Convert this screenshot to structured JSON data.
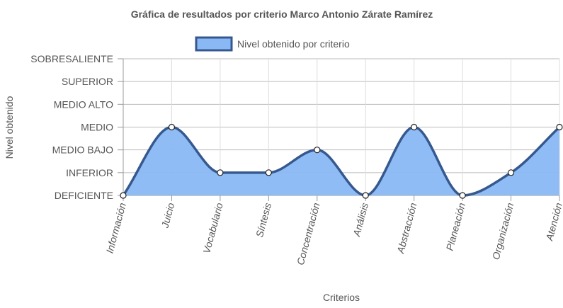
{
  "chart_data": {
    "type": "area",
    "title": "Gráfica de resultados por criterio Marco Antonio Zárate Ramírez",
    "xlabel": "Criterios",
    "ylabel": "Nivel obtenido",
    "levels": [
      "DEFICIENTE",
      "INFERIOR",
      "MEDIO BAJO",
      "MEDIO",
      "MEDIO ALTO",
      "SUPERIOR",
      "SOBRESALIENTE"
    ],
    "categories": [
      "Información",
      "Juicio",
      "Vocabulario",
      "Síntesis",
      "Concentración",
      "Análisis",
      "Abstracción",
      "Planeación",
      "Organización",
      "Atención"
    ],
    "series": [
      {
        "name": "Nivel obtenido por criterio",
        "values": [
          0,
          3,
          1,
          1,
          2,
          0,
          3,
          0,
          1,
          3
        ],
        "value_labels": [
          "DEFICIENTE",
          "MEDIO",
          "INFERIOR",
          "INFERIOR",
          "MEDIO BAJO",
          "DEFICIENTE",
          "MEDIO",
          "DEFICIENTE",
          "INFERIOR",
          "MEDIO"
        ]
      }
    ],
    "ylim": [
      0,
      6
    ],
    "grid": true,
    "legend_position": "top",
    "colors": {
      "fill": "#8ab8f4",
      "line": "#35598f",
      "point_fill": "#ffffff",
      "grid": "#dddddd",
      "axis": "#888888"
    }
  }
}
